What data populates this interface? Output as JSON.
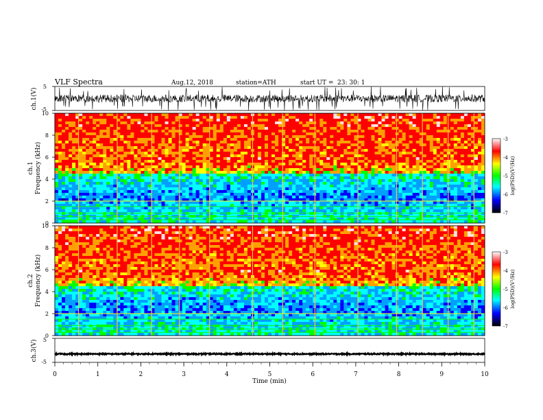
{
  "header": {
    "title": "VLF  Spectra",
    "date": "Aug.12, 2018",
    "station": "station=ATH",
    "start_label": "start  UT  =",
    "start_time": "23: 30: 1"
  },
  "colors": {
    "background": "#ffffff",
    "waveform": "#000000",
    "colormap": [
      "#000000",
      "#0000ff",
      "#00ffff",
      "#00ff00",
      "#ffff00",
      "#ff0000",
      "#ffffff"
    ]
  },
  "chart_data": [
    {
      "type": "line",
      "panel": "ch1-waveform",
      "ylabel": "ch.1(V)",
      "ylim": [
        -5,
        5
      ],
      "yticks": [
        "5",
        "-5"
      ],
      "xlim": [
        0,
        10
      ],
      "description_values": {
        "typical_amplitude_v": 1.5,
        "spikes_to_limit": true
      }
    },
    {
      "type": "heatmap",
      "panel": "ch1-spectrogram",
      "ylabel": "ch.1\nFrequency  (kHz)",
      "ylabel_line1": "ch.1",
      "ylabel_line2": "Frequency  (kHz)",
      "ylim": [
        0,
        10
      ],
      "yticks": [
        "0",
        "2",
        "4",
        "6",
        "8",
        "10"
      ],
      "xlim": [
        0,
        10
      ],
      "colorbar": {
        "label": "log(PSD)(V²/Hz)",
        "range": [
          -7,
          -3
        ],
        "ticks": [
          "-3",
          "-4",
          "-5",
          "-6",
          "-7"
        ]
      }
    },
    {
      "type": "heatmap",
      "panel": "ch2-spectrogram",
      "ylabel_line1": "ch.2",
      "ylabel_line2": "Frequency  (kHz)",
      "ylim": [
        0,
        10
      ],
      "yticks": [
        "0",
        "2",
        "4",
        "6",
        "8",
        "10"
      ],
      "xlim": [
        0,
        10
      ],
      "colorbar": {
        "label": "log(PSD)(V²/Hz)",
        "range": [
          -7,
          -3
        ],
        "ticks": [
          "-3",
          "-4",
          "-5",
          "-6",
          "-7"
        ]
      }
    },
    {
      "type": "line",
      "panel": "ch3-waveform",
      "ylabel": "ch.3(V)",
      "ylim": [
        -5,
        5
      ],
      "yticks": [
        "5",
        "-5"
      ],
      "xlim": [
        0,
        10
      ],
      "xlabel": "Time  (min)",
      "xticks": [
        "0",
        "1",
        "2",
        "3",
        "4",
        "5",
        "6",
        "7",
        "8",
        "9",
        "10"
      ],
      "constant_level_v": -1.5
    }
  ]
}
